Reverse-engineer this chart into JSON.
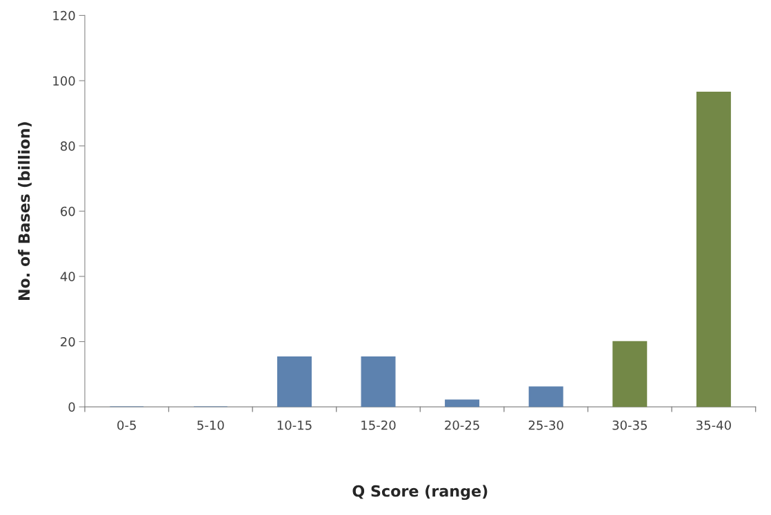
{
  "chart_data": {
    "type": "bar",
    "xlabel": "Q Score (range)",
    "ylabel": "No. of Bases (billion)",
    "categories": [
      "0-5",
      "5-10",
      "10-15",
      "15-20",
      "20-25",
      "25-30",
      "30-35",
      "35-40"
    ],
    "values": [
      0,
      0,
      15.3,
      15.3,
      2.1,
      6.1,
      20,
      96.5
    ],
    "colors": [
      "#4f81bd",
      "#4f81bd",
      "#4f81bd",
      "#4f81bd",
      "#4f81bd",
      "#4f81bd",
      "#77933c",
      "#77933c"
    ],
    "ylim": [
      0,
      120
    ],
    "yticks": [
      0,
      20,
      40,
      60,
      80,
      100,
      120
    ],
    "grid": false,
    "legend": false
  }
}
